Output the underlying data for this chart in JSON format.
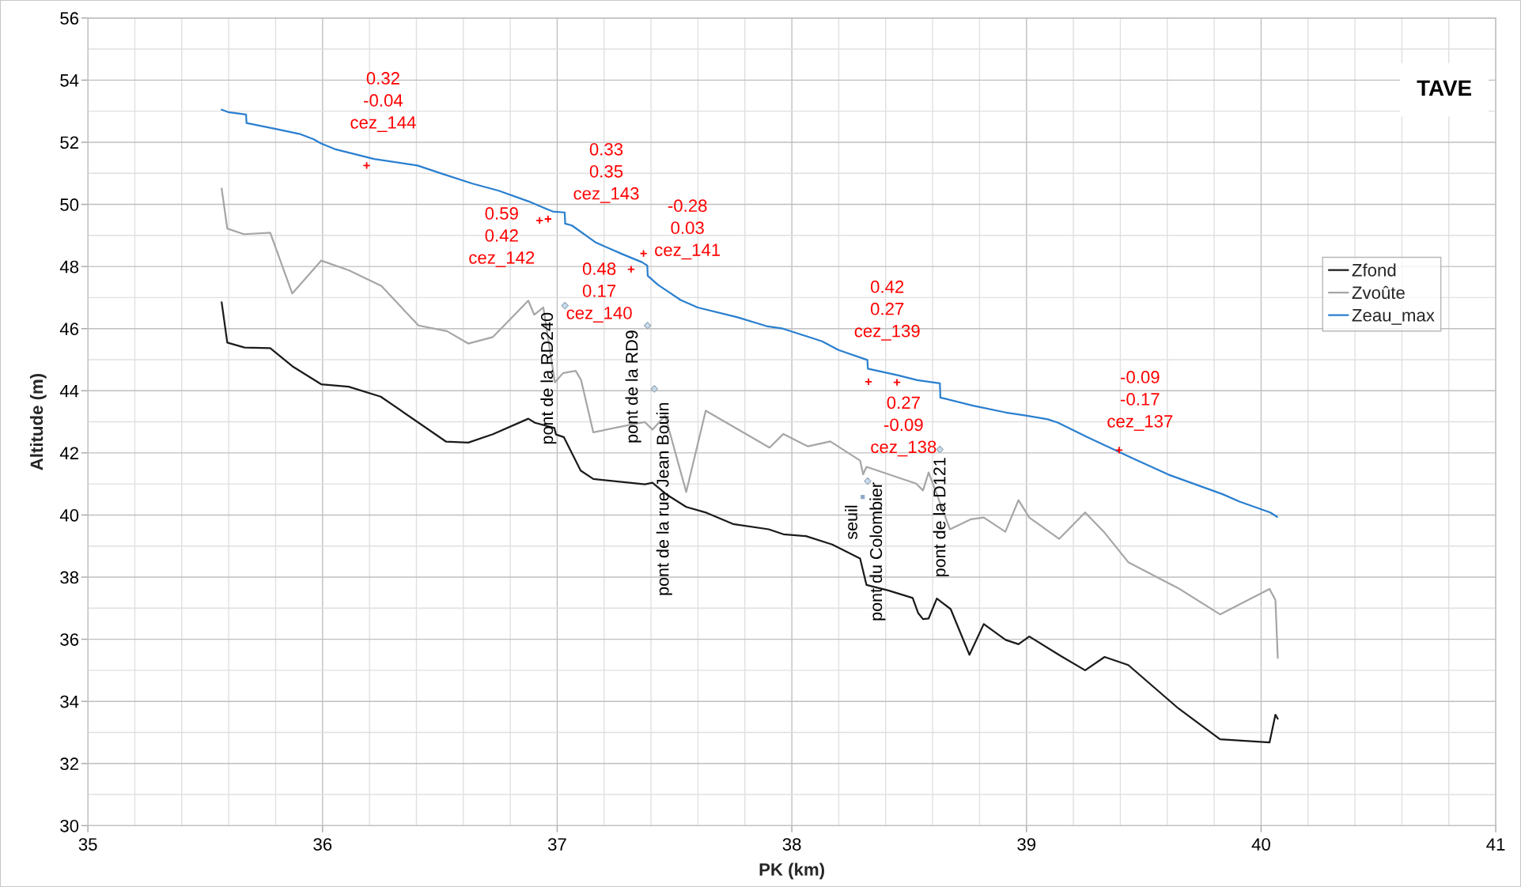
{
  "chart_data": {
    "type": "line",
    "title": "TAVE",
    "xlabel": "PK (km)",
    "ylabel": "Altitude (m)",
    "xlim": [
      35,
      41
    ],
    "ylim": [
      30,
      56
    ],
    "xticks": [
      35,
      {
        "value": 35.2,
        "label": null
      },
      {
        "value": 35.4,
        "label": null
      },
      {
        "value": 35.6,
        "label": null
      },
      {
        "value": 35.8,
        "label": null
      },
      36,
      {
        "value": 36.2,
        "label": null
      },
      {
        "value": 36.4,
        "label": null
      },
      {
        "value": 36.6,
        "label": null
      },
      {
        "value": 36.8,
        "label": null
      },
      37,
      {
        "value": 37.2,
        "label": null
      },
      {
        "value": 37.4,
        "label": null
      },
      {
        "value": 37.6,
        "label": null
      },
      {
        "value": 37.8,
        "label": null
      },
      38,
      {
        "value": 38.2,
        "label": null
      },
      {
        "value": 38.4,
        "label": null
      },
      {
        "value": 38.6,
        "label": null
      },
      {
        "value": 38.8,
        "label": null
      },
      39,
      {
        "value": 39.2,
        "label": null
      },
      {
        "value": 39.4,
        "label": null
      },
      {
        "value": 39.6,
        "label": null
      },
      {
        "value": 39.8,
        "label": null
      },
      40,
      {
        "value": 40.2,
        "label": null
      },
      {
        "value": 40.4,
        "label": null
      },
      {
        "value": 40.6,
        "label": null
      },
      {
        "value": 40.8,
        "label": null
      },
      41
    ],
    "yticks": [
      30,
      {
        "value": 31,
        "label": null
      },
      32,
      {
        "value": 33,
        "label": null
      },
      34,
      {
        "value": 35,
        "label": null
      },
      36,
      {
        "value": 37,
        "label": null
      },
      38,
      {
        "value": 39,
        "label": null
      },
      40,
      {
        "value": 41,
        "label": null
      },
      42,
      {
        "value": 43,
        "label": null
      },
      44,
      {
        "value": 45,
        "label": null
      },
      46,
      {
        "value": 47,
        "label": null
      },
      48,
      {
        "value": 49,
        "label": null
      },
      50,
      {
        "value": 51,
        "label": null
      },
      52,
      {
        "value": 53,
        "label": null
      },
      54,
      {
        "value": 55,
        "label": null
      },
      56
    ],
    "grid": true,
    "legend": "right",
    "series": [
      {
        "name": "Zfond",
        "color": "#1a1a1a",
        "x": [
          35.57,
          35.594,
          35.668,
          35.777,
          35.871,
          35.994,
          36.111,
          36.248,
          36.527,
          36.621,
          36.726,
          36.877,
          36.905,
          36.988,
          36.995,
          37.028,
          37.1,
          37.154,
          37.374,
          37.406,
          37.47,
          37.55,
          37.637,
          37.749,
          37.901,
          37.964,
          38.06,
          38.172,
          38.291,
          38.318,
          38.411,
          38.515,
          38.538,
          38.559,
          38.583,
          38.618,
          38.677,
          38.757,
          38.818,
          38.911,
          38.966,
          39.012,
          39.142,
          39.25,
          39.333,
          39.434,
          39.648,
          39.825,
          40.036,
          40.061,
          40.071
        ],
        "values": [
          46.85,
          45.55,
          45.39,
          45.37,
          44.79,
          44.21,
          44.13,
          43.81,
          42.36,
          42.33,
          42.6,
          43.1,
          42.97,
          42.8,
          42.59,
          42.51,
          41.43,
          41.16,
          40.99,
          41.04,
          40.64,
          40.26,
          40.07,
          39.71,
          39.54,
          39.38,
          39.32,
          39.05,
          38.6,
          37.75,
          37.57,
          37.33,
          36.85,
          36.65,
          36.67,
          37.31,
          36.97,
          35.5,
          36.49,
          35.98,
          35.84,
          36.09,
          35.48,
          35.0,
          35.43,
          35.17,
          33.77,
          32.78,
          32.68,
          33.57,
          33.44
        ]
      },
      {
        "name": "Zvoûte",
        "color": "#a6a6a6",
        "x": [
          35.57,
          35.594,
          35.665,
          35.777,
          35.871,
          35.994,
          36.111,
          36.251,
          36.409,
          36.53,
          36.621,
          36.726,
          36.877,
          36.902,
          36.941,
          36.99,
          37.025,
          37.079,
          37.102,
          37.154,
          37.326,
          37.374,
          37.406,
          37.46,
          37.55,
          37.633,
          37.905,
          37.964,
          38.068,
          38.164,
          38.291,
          38.304,
          38.318,
          38.53,
          38.559,
          38.583,
          38.674,
          38.762,
          38.818,
          38.91,
          38.966,
          39.012,
          39.139,
          39.25,
          39.333,
          39.434,
          39.648,
          39.825,
          40.036,
          40.061,
          40.071
        ],
        "values": [
          50.51,
          49.22,
          49.04,
          49.09,
          47.13,
          48.19,
          47.88,
          47.37,
          46.1,
          45.92,
          45.52,
          45.73,
          46.9,
          46.45,
          46.68,
          44.27,
          44.57,
          44.64,
          44.34,
          42.66,
          42.93,
          42.99,
          42.75,
          43.2,
          40.74,
          43.36,
          42.17,
          42.61,
          42.21,
          42.37,
          41.75,
          41.31,
          41.55,
          41.01,
          40.79,
          41.37,
          39.54,
          39.86,
          39.92,
          39.46,
          40.48,
          39.92,
          39.23,
          40.08,
          39.43,
          38.48,
          37.64,
          36.8,
          37.62,
          37.26,
          35.4
        ]
      },
      {
        "name": "Zeau_max",
        "color": "#2a7fcf",
        "x": [
          35.57,
          35.598,
          35.674,
          35.676,
          35.801,
          35.901,
          35.961,
          35.994,
          36.052,
          36.22,
          36.405,
          36.5,
          36.639,
          36.751,
          36.877,
          36.946,
          36.981,
          37.032,
          37.034,
          37.063,
          37.165,
          37.277,
          37.361,
          37.384,
          37.386,
          37.431,
          37.473,
          37.526,
          37.599,
          37.766,
          37.892,
          37.962,
          38.129,
          38.199,
          38.322,
          38.324,
          38.451,
          38.535,
          38.631,
          38.633,
          38.661,
          38.772,
          38.912,
          38.997,
          39.091,
          39.135,
          39.258,
          39.395,
          39.46,
          39.605,
          39.836,
          39.908,
          40.039,
          40.068
        ],
        "values": [
          53.05,
          52.97,
          52.89,
          52.62,
          52.43,
          52.27,
          52.1,
          51.96,
          51.78,
          51.46,
          51.25,
          51.01,
          50.67,
          50.44,
          50.1,
          49.88,
          49.77,
          49.74,
          49.38,
          49.32,
          48.77,
          48.4,
          48.14,
          48.03,
          47.7,
          47.4,
          47.19,
          46.92,
          46.68,
          46.37,
          46.08,
          46.0,
          45.59,
          45.31,
          44.99,
          44.71,
          44.5,
          44.34,
          44.24,
          43.78,
          43.73,
          43.52,
          43.3,
          43.2,
          43.08,
          42.97,
          42.51,
          42.03,
          41.8,
          41.3,
          40.67,
          40.43,
          40.08,
          39.94
        ]
      },
      {
        "type": "scatter",
        "marker": "cross",
        "color": "#ff0000",
        "x": [
          36.188,
          36.925,
          36.961,
          37.315,
          37.368,
          38.327,
          38.448,
          39.395
        ],
        "values": [
          51.25,
          49.48,
          49.53,
          47.91,
          48.42,
          44.29,
          44.27,
          42.09
        ],
        "value_labels": [
          "0.32\n-0.04\ncez_144",
          "0.59\n0.42\ncez_142",
          "0.33\n0.35\ncez_143",
          "0.48\n0.17\ncez_140",
          "-0.28\n0.03\ncez_141",
          "0.42\n0.27\ncez_139",
          "0.27\n-0.09\ncez_138",
          "-0.09\n-0.17\ncez_137"
        ]
      },
      {
        "type": "scatter",
        "marker": "diamond",
        "color": "#c9ddf0",
        "x": [
          37.033,
          37.385,
          37.414,
          38.323,
          38.631
        ],
        "values": [
          46.74,
          46.1,
          44.06,
          41.09,
          42.11
        ],
        "value_labels": [
          "pont de la RD240",
          "pont de la RD9",
          "pont de la rue Jean Bouin",
          "pont du Colombier",
          "pont de la D121"
        ]
      },
      {
        "type": "scatter",
        "marker": "square",
        "color": "#8fa9c8",
        "x": [
          38.302
        ],
        "values": [
          40.58
        ],
        "value_labels": [
          "seuil"
        ]
      }
    ]
  }
}
